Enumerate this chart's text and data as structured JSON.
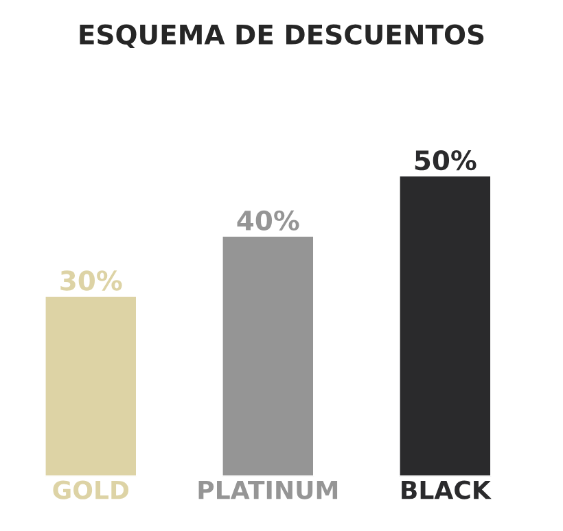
{
  "chart_data": {
    "type": "bar",
    "title": "ESQUEMA DE DESCUENTOS",
    "categories": [
      "GOLD",
      "PLATINUM",
      "BLACK"
    ],
    "values": [
      30,
      40,
      50
    ],
    "value_labels": [
      "30%",
      "40%",
      "50%"
    ],
    "colors": [
      "#ddd3a5",
      "#959595",
      "#2a2a2c"
    ],
    "grid": false,
    "legend": false
  }
}
